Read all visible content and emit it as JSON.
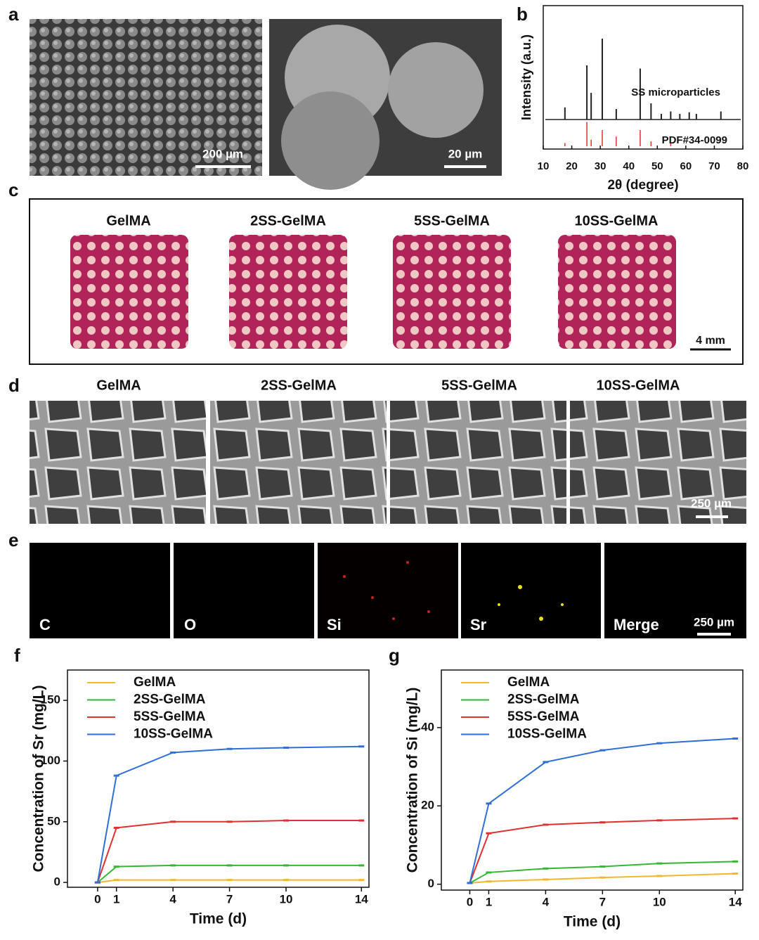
{
  "panels": {
    "a": {
      "label": "a",
      "scale_bars": [
        "200 µm",
        "20 µm"
      ]
    },
    "b": {
      "label": "b"
    },
    "c": {
      "label": "c",
      "samples": [
        "GelMA",
        "2SS-GelMA",
        "5SS-GelMA",
        "10SS-GelMA"
      ],
      "scale_bar": "4 mm"
    },
    "d": {
      "label": "d",
      "samples": [
        "GelMA",
        "2SS-GelMA",
        "5SS-GelMA",
        "10SS-GelMA"
      ],
      "scale_bar": "250 µm"
    },
    "e": {
      "label": "e",
      "elements": [
        "C",
        "O",
        "Si",
        "Sr",
        "Merge"
      ],
      "scale_bar": "250 µm"
    },
    "f": {
      "label": "f"
    },
    "g": {
      "label": "g"
    }
  },
  "chart_data": [
    {
      "type": "xrd",
      "x_label": "2θ (degree)",
      "y_label": "Intensity (a.u.)",
      "xlim": [
        10,
        80
      ],
      "xticks": [
        10,
        20,
        30,
        40,
        50,
        60,
        70,
        80
      ],
      "ylim": [
        0,
        100
      ],
      "series": [
        {
          "name": "SS microparticles",
          "color": "#222222",
          "x": [
            17.6,
            25.3,
            26.8,
            30.7,
            35.6,
            44,
            47.8,
            51.4,
            54.7,
            57.9,
            61.2,
            63.7,
            72.3
          ],
          "values": [
            15,
            67,
            33,
            100,
            13,
            63,
            20,
            7,
            10,
            7,
            9,
            7,
            10
          ]
        },
        {
          "name": "PDF#34-0099",
          "color": "#e03030",
          "x": [
            17.6,
            25.3,
            26.8,
            30.7,
            35.6,
            44,
            47.8,
            54.7
          ],
          "values": [
            4,
            30,
            8,
            20,
            12,
            20,
            6,
            4
          ]
        }
      ]
    },
    {
      "type": "line",
      "x_label": "Time (d)",
      "y_label": "Concentration of Sr (mg/L)",
      "legend": "upper left",
      "x": [
        0,
        1,
        4,
        7,
        10,
        14
      ],
      "xlim": [
        -1.6,
        14.4
      ],
      "xticks": [
        0,
        1,
        4,
        7,
        10,
        14
      ],
      "ylim": [
        -4,
        175
      ],
      "yticks": [
        0,
        50,
        100,
        150
      ],
      "series": [
        {
          "name": "GelMA",
          "color": "#f2b82e",
          "values": [
            0,
            2,
            2,
            2,
            2,
            2
          ]
        },
        {
          "name": "2SS-GelMA",
          "color": "#34b834",
          "values": [
            0,
            13,
            14,
            14,
            14,
            14
          ]
        },
        {
          "name": "5SS-GelMA",
          "color": "#e03030",
          "values": [
            0,
            45,
            50,
            50,
            51,
            51
          ]
        },
        {
          "name": "10SS-GelMA",
          "color": "#2f6fd6",
          "values": [
            0,
            88,
            107,
            110,
            111,
            112
          ]
        }
      ]
    },
    {
      "type": "line",
      "x_label": "Time (d)",
      "y_label": "Concentration of Si (mg/L)",
      "legend": "upper left",
      "x": [
        0,
        1,
        4,
        7,
        10,
        14
      ],
      "xlim": [
        -1.5,
        14.4
      ],
      "xticks": [
        0,
        1,
        4,
        7,
        10,
        14
      ],
      "ylim": [
        -1.5,
        54.7
      ],
      "yticks": [
        0,
        20,
        40
      ],
      "series": [
        {
          "name": "GelMA",
          "color": "#f2b82e",
          "values": [
            0.3,
            0.7,
            1.2,
            1.7,
            2.1,
            2.7
          ]
        },
        {
          "name": "2SS-GelMA",
          "color": "#34b834",
          "values": [
            0.3,
            3,
            4,
            4.5,
            5.3,
            5.8
          ]
        },
        {
          "name": "5SS-GelMA",
          "color": "#e03030",
          "values": [
            0.3,
            13,
            15.2,
            15.8,
            16.3,
            16.8
          ]
        },
        {
          "name": "10SS-GelMA",
          "color": "#2f6fd6",
          "values": [
            0.3,
            20.6,
            31.2,
            34.2,
            36,
            37.2
          ]
        }
      ]
    }
  ]
}
